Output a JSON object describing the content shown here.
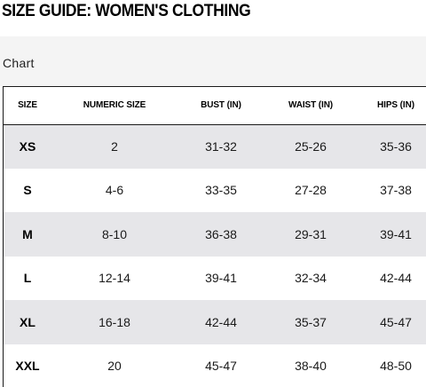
{
  "page": {
    "title": "SIZE GUIDE: WOMEN'S CLOTHING"
  },
  "tabs": {
    "active_label": "Chart"
  },
  "table": {
    "headers": [
      "SIZE",
      "NUMERIC SIZE",
      "BUST (IN)",
      "WAIST (IN)",
      "HIPS (IN)"
    ],
    "rows": [
      [
        "XS",
        "2",
        "31-32",
        "25-26",
        "35-36"
      ],
      [
        "S",
        "4-6",
        "33-35",
        "27-28",
        "37-38"
      ],
      [
        "M",
        "8-10",
        "36-38",
        "29-31",
        "39-41"
      ],
      [
        "L",
        "12-14",
        "39-41",
        "32-34",
        "42-44"
      ],
      [
        "XL",
        "16-18",
        "42-44",
        "35-37",
        "45-47"
      ],
      [
        "XXL",
        "20",
        "45-47",
        "38-40",
        "48-50"
      ]
    ]
  },
  "colors": {
    "shaded_row": "#e6e6e9",
    "tab_bar": "#f4f4f4",
    "border": "#1a1a1a"
  }
}
